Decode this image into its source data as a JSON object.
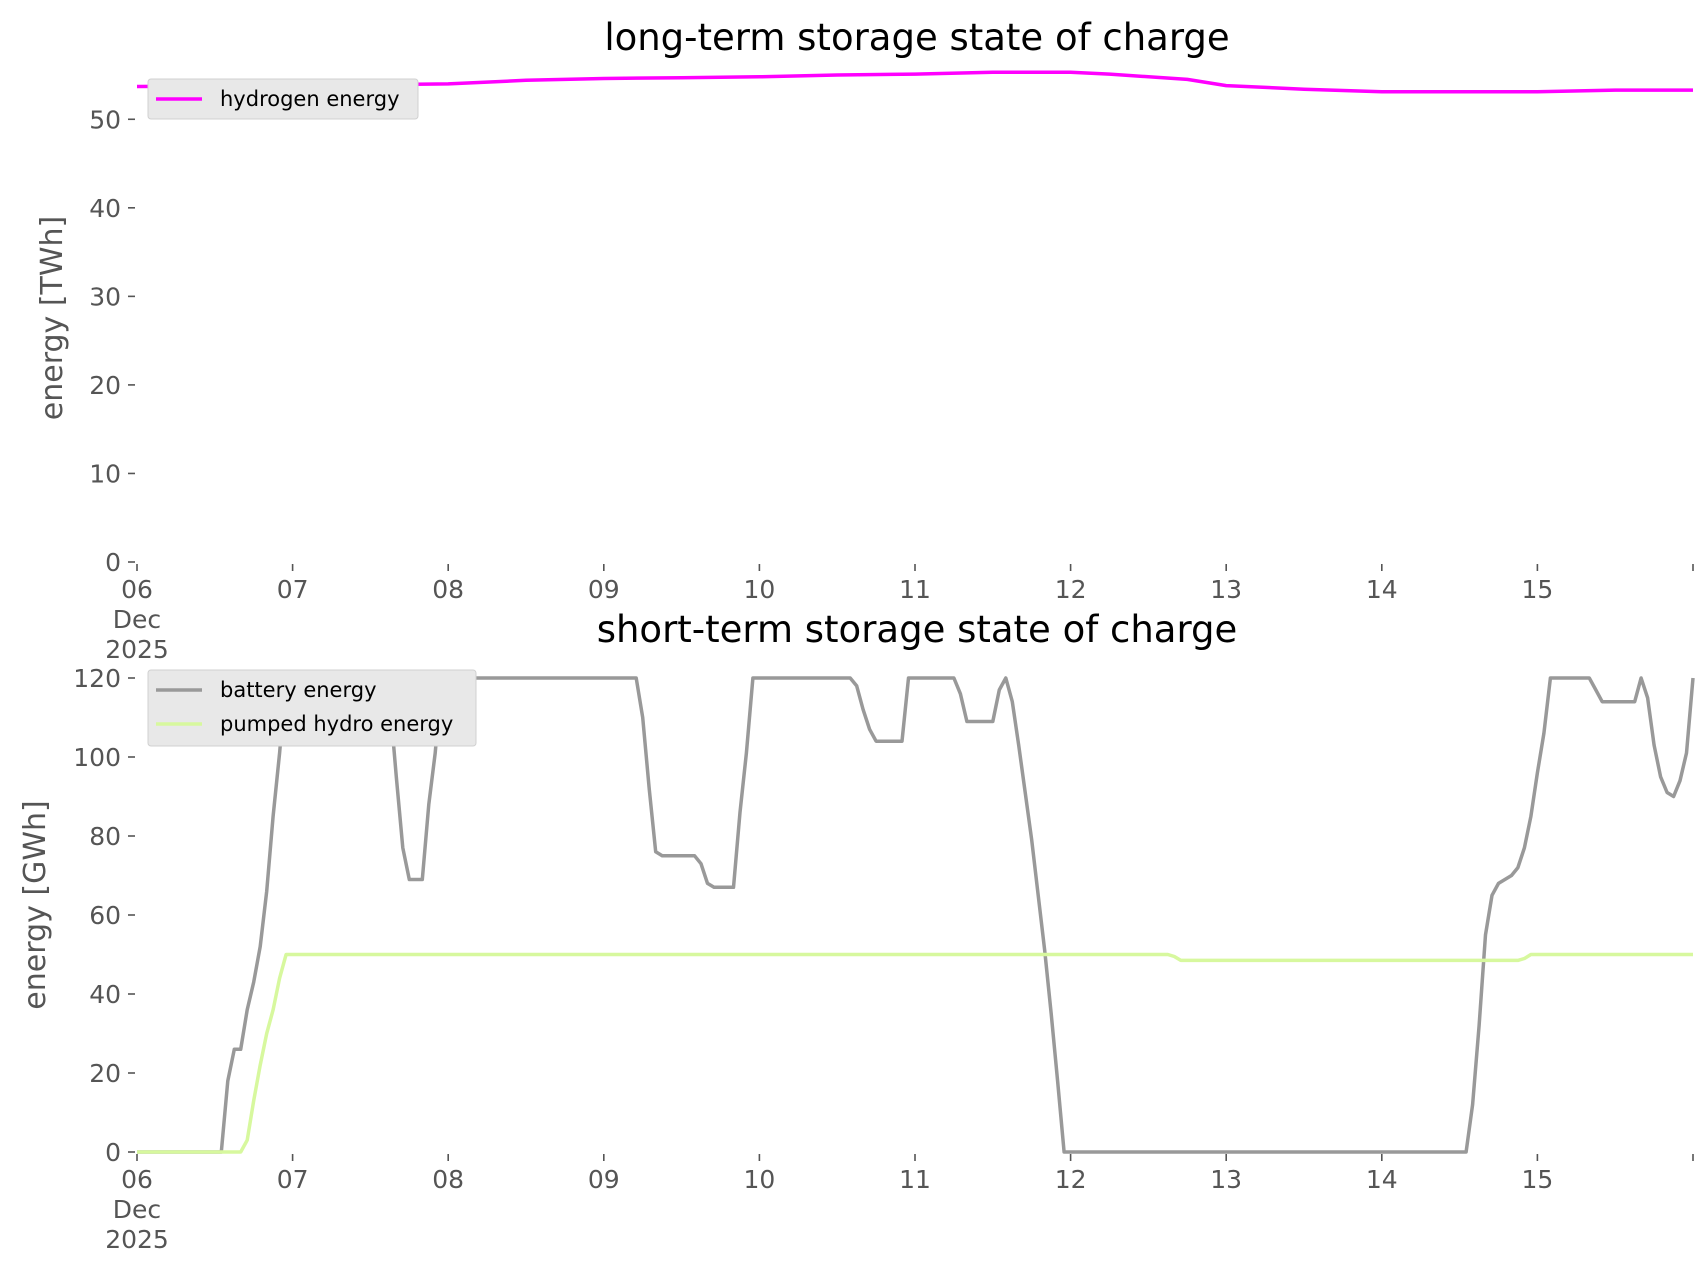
{
  "chart_data": [
    {
      "type": "line",
      "title": "long-term storage state of charge",
      "xlabel": "",
      "ylabel": "energy [TWh]",
      "ylim": [
        0,
        55
      ],
      "yticks": [
        0,
        10,
        20,
        30,
        40,
        50
      ],
      "xlim": [
        "2025-12-06",
        "2025-12-16"
      ],
      "xticks": [
        {
          "date": "2025-12-06",
          "label": "06",
          "label2": "Dec",
          "label3": "2025"
        },
        {
          "date": "2025-12-07",
          "label": "07"
        },
        {
          "date": "2025-12-08",
          "label": "08"
        },
        {
          "date": "2025-12-09",
          "label": "09"
        },
        {
          "date": "2025-12-10",
          "label": "10"
        },
        {
          "date": "2025-12-11",
          "label": "11"
        },
        {
          "date": "2025-12-12",
          "label": "12"
        },
        {
          "date": "2025-12-13",
          "label": "13"
        },
        {
          "date": "2025-12-14",
          "label": "14"
        },
        {
          "date": "2025-12-15",
          "label": "15"
        },
        {
          "date": "2025-12-16",
          "label": ""
        }
      ],
      "grid": false,
      "legend": "top-left",
      "series": [
        {
          "name": "hydrogen energy",
          "color": "#ff00ff",
          "points": [
            [
              "2025-12-06 00:00",
              53.7
            ],
            [
              "2025-12-07 00:00",
              53.8
            ],
            [
              "2025-12-08 00:00",
              54.0
            ],
            [
              "2025-12-08 12:00",
              54.4
            ],
            [
              "2025-12-09 00:00",
              54.6
            ],
            [
              "2025-12-09 12:00",
              54.7
            ],
            [
              "2025-12-10 00:00",
              54.8
            ],
            [
              "2025-12-10 12:00",
              55.0
            ],
            [
              "2025-12-11 00:00",
              55.1
            ],
            [
              "2025-12-11 12:00",
              55.3
            ],
            [
              "2025-12-12 00:00",
              55.3
            ],
            [
              "2025-12-12 06:00",
              55.1
            ],
            [
              "2025-12-12 18:00",
              54.5
            ],
            [
              "2025-12-13 00:00",
              53.8
            ],
            [
              "2025-12-13 12:00",
              53.4
            ],
            [
              "2025-12-14 00:00",
              53.1
            ],
            [
              "2025-12-15 00:00",
              53.1
            ],
            [
              "2025-12-15 12:00",
              53.3
            ],
            [
              "2025-12-16 00:00",
              53.3
            ]
          ]
        }
      ]
    },
    {
      "type": "line",
      "title": "short-term storage state of charge",
      "xlabel": "",
      "ylabel": "energy [GWh]",
      "ylim": [
        0,
        120
      ],
      "yticks": [
        0,
        20,
        40,
        60,
        80,
        100,
        120
      ],
      "xlim": [
        "2025-12-06",
        "2025-12-16"
      ],
      "xticks": [
        {
          "date": "2025-12-06",
          "label": "06",
          "label2": "Dec",
          "label3": "2025"
        },
        {
          "date": "2025-12-07",
          "label": "07"
        },
        {
          "date": "2025-12-08",
          "label": "08"
        },
        {
          "date": "2025-12-09",
          "label": "09"
        },
        {
          "date": "2025-12-10",
          "label": "10"
        },
        {
          "date": "2025-12-11",
          "label": "11"
        },
        {
          "date": "2025-12-12",
          "label": "12"
        },
        {
          "date": "2025-12-13",
          "label": "13"
        },
        {
          "date": "2025-12-14",
          "label": "14"
        },
        {
          "date": "2025-12-15",
          "label": "15"
        },
        {
          "date": "2025-12-16",
          "label": ""
        }
      ],
      "grid": false,
      "legend": "top-left",
      "series": [
        {
          "name": "battery energy",
          "color": "#999999",
          "points": [
            [
              "2025-12-06 00:00",
              0
            ],
            [
              "2025-12-06 13:00",
              0
            ],
            [
              "2025-12-06 14:00",
              18
            ],
            [
              "2025-12-06 15:00",
              26
            ],
            [
              "2025-12-06 16:00",
              26
            ],
            [
              "2025-12-06 17:00",
              36
            ],
            [
              "2025-12-06 18:00",
              43
            ],
            [
              "2025-12-06 19:00",
              52
            ],
            [
              "2025-12-06 20:00",
              66
            ],
            [
              "2025-12-06 21:00",
              85
            ],
            [
              "2025-12-06 22:00",
              101
            ],
            [
              "2025-12-06 23:00",
              120
            ],
            [
              "2025-12-07 14:00",
              120
            ],
            [
              "2025-12-07 15:00",
              114
            ],
            [
              "2025-12-07 16:00",
              95
            ],
            [
              "2025-12-07 17:00",
              77
            ],
            [
              "2025-12-07 18:00",
              69
            ],
            [
              "2025-12-07 20:00",
              69
            ],
            [
              "2025-12-07 21:00",
              88
            ],
            [
              "2025-12-07 22:00",
              101
            ],
            [
              "2025-12-07 23:00",
              120
            ],
            [
              "2025-12-09 05:00",
              120
            ],
            [
              "2025-12-09 06:00",
              110
            ],
            [
              "2025-12-09 07:00",
              92
            ],
            [
              "2025-12-09 08:00",
              76
            ],
            [
              "2025-12-09 09:00",
              75
            ],
            [
              "2025-12-09 14:00",
              75
            ],
            [
              "2025-12-09 15:00",
              73
            ],
            [
              "2025-12-09 16:00",
              68
            ],
            [
              "2025-12-09 17:00",
              67
            ],
            [
              "2025-12-09 20:00",
              67
            ],
            [
              "2025-12-09 21:00",
              86
            ],
            [
              "2025-12-09 22:00",
              101
            ],
            [
              "2025-12-09 23:00",
              120
            ],
            [
              "2025-12-10 14:00",
              120
            ],
            [
              "2025-12-10 15:00",
              118
            ],
            [
              "2025-12-10 16:00",
              112
            ],
            [
              "2025-12-10 17:00",
              107
            ],
            [
              "2025-12-10 18:00",
              104
            ],
            [
              "2025-12-10 22:00",
              104
            ],
            [
              "2025-12-10 23:00",
              120
            ],
            [
              "2025-12-11 06:00",
              120
            ],
            [
              "2025-12-11 07:00",
              116
            ],
            [
              "2025-12-11 08:00",
              109
            ],
            [
              "2025-12-11 12:00",
              109
            ],
            [
              "2025-12-11 13:00",
              117
            ],
            [
              "2025-12-11 14:00",
              120
            ],
            [
              "2025-12-11 15:00",
              114
            ],
            [
              "2025-12-11 16:00",
              103
            ],
            [
              "2025-12-11 17:00",
              91
            ],
            [
              "2025-12-11 18:00",
              79
            ],
            [
              "2025-12-11 19:00",
              65
            ],
            [
              "2025-12-11 20:00",
              51
            ],
            [
              "2025-12-11 21:00",
              35
            ],
            [
              "2025-12-11 22:00",
              18
            ],
            [
              "2025-12-11 23:00",
              0
            ],
            [
              "2025-12-14 13:00",
              0
            ],
            [
              "2025-12-14 14:00",
              12
            ],
            [
              "2025-12-14 15:00",
              32
            ],
            [
              "2025-12-14 16:00",
              55
            ],
            [
              "2025-12-14 17:00",
              65
            ],
            [
              "2025-12-14 18:00",
              68
            ],
            [
              "2025-12-14 20:00",
              70
            ],
            [
              "2025-12-14 21:00",
              72
            ],
            [
              "2025-12-14 22:00",
              77
            ],
            [
              "2025-12-14 23:00",
              85
            ],
            [
              "2025-12-15 00:00",
              96
            ],
            [
              "2025-12-15 01:00",
              106
            ],
            [
              "2025-12-15 02:00",
              120
            ],
            [
              "2025-12-15 08:00",
              120
            ],
            [
              "2025-12-15 09:00",
              117
            ],
            [
              "2025-12-15 10:00",
              114
            ],
            [
              "2025-12-15 15:00",
              114
            ],
            [
              "2025-12-15 16:00",
              120
            ],
            [
              "2025-12-15 17:00",
              115
            ],
            [
              "2025-12-15 18:00",
              103
            ],
            [
              "2025-12-15 19:00",
              95
            ],
            [
              "2025-12-15 20:00",
              91
            ],
            [
              "2025-12-15 21:00",
              90
            ],
            [
              "2025-12-15 22:00",
              94
            ],
            [
              "2025-12-15 23:00",
              101
            ],
            [
              "2025-12-16 00:00",
              120
            ]
          ]
        },
        {
          "name": "pumped hydro energy",
          "color": "#d7f89e",
          "points": [
            [
              "2025-12-06 00:00",
              0
            ],
            [
              "2025-12-06 16:00",
              0
            ],
            [
              "2025-12-06 17:00",
              3
            ],
            [
              "2025-12-06 18:00",
              13
            ],
            [
              "2025-12-06 19:00",
              22
            ],
            [
              "2025-12-06 20:00",
              30
            ],
            [
              "2025-12-06 21:00",
              36
            ],
            [
              "2025-12-06 22:00",
              44
            ],
            [
              "2025-12-06 23:00",
              50
            ],
            [
              "2025-12-12 15:00",
              50
            ],
            [
              "2025-12-12 16:00",
              49.5
            ],
            [
              "2025-12-12 17:00",
              48.5
            ],
            [
              "2025-12-14 21:00",
              48.5
            ],
            [
              "2025-12-14 22:00",
              49
            ],
            [
              "2025-12-14 23:00",
              50
            ],
            [
              "2025-12-16 00:00",
              50
            ]
          ]
        }
      ]
    }
  ]
}
